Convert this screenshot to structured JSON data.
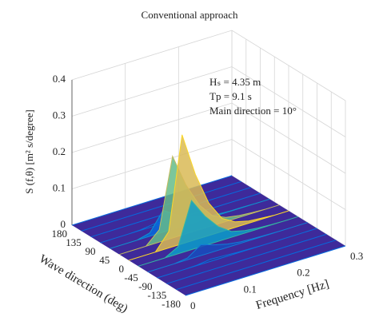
{
  "chart_data": {
    "type": "surface",
    "title": "Conventional approach",
    "xlabel": "Frequency [Hz]",
    "ylabel": "Wave direction (deg)",
    "zlabel": "S (f,θ) [m² s/degree]",
    "annotations": [
      "Hₛ = 4.35 m",
      "Tp = 9.1 s",
      "Main direction = 10°"
    ],
    "x": [
      0,
      0.025,
      0.05,
      0.075,
      0.1,
      0.125,
      0.15,
      0.175,
      0.2,
      0.225,
      0.25,
      0.275,
      0.3
    ],
    "y": [
      -180,
      -150,
      -120,
      -90,
      -60,
      -30,
      0,
      30,
      60,
      90,
      120,
      150,
      180
    ],
    "z": [
      [
        0,
        0,
        0,
        0,
        0,
        0,
        0,
        0,
        0,
        0,
        0,
        0,
        0
      ],
      [
        0,
        0,
        0,
        0,
        0,
        0,
        0,
        0,
        0,
        0,
        0,
        0,
        0
      ],
      [
        0,
        0,
        0,
        0,
        0,
        0,
        0,
        0,
        0,
        0,
        0,
        0,
        0
      ],
      [
        0,
        0,
        0,
        0.001,
        0.006,
        0.004,
        0.002,
        0.001,
        0,
        0,
        0,
        0,
        0
      ],
      [
        0,
        0,
        0,
        0.005,
        0.03,
        0.018,
        0.009,
        0.004,
        0.002,
        0.001,
        0,
        0,
        0
      ],
      [
        0,
        0,
        0,
        0.02,
        0.135,
        0.081,
        0.041,
        0.016,
        0.007,
        0.003,
        0.001,
        0,
        0
      ],
      [
        0,
        0,
        0,
        0.045,
        0.3,
        0.18,
        0.09,
        0.036,
        0.015,
        0.006,
        0.003,
        0,
        0
      ],
      [
        0,
        0,
        0,
        0.034,
        0.225,
        0.135,
        0.068,
        0.027,
        0.011,
        0.005,
        0.002,
        0,
        0
      ],
      [
        0,
        0,
        0,
        0.009,
        0.06,
        0.036,
        0.018,
        0.007,
        0.003,
        0.001,
        0.001,
        0,
        0
      ],
      [
        0,
        0,
        0,
        0.001,
        0.006,
        0.004,
        0.002,
        0.001,
        0,
        0,
        0,
        0,
        0
      ],
      [
        0,
        0,
        0,
        0,
        0,
        0,
        0,
        0,
        0,
        0,
        0,
        0,
        0
      ],
      [
        0,
        0,
        0,
        0,
        0,
        0,
        0,
        0,
        0,
        0,
        0,
        0,
        0
      ],
      [
        0,
        0,
        0,
        0,
        0,
        0,
        0,
        0,
        0,
        0,
        0,
        0,
        0
      ]
    ],
    "xlim": [
      0,
      0.3
    ],
    "ylim": [
      -180,
      180
    ],
    "zlim": [
      0,
      0.4
    ],
    "xticks": [
      0,
      0.1,
      0.2,
      0.3
    ],
    "yticks": [
      -180,
      -135,
      -90,
      -45,
      0,
      45,
      90,
      135,
      180
    ],
    "zticks": [
      0,
      0.1,
      0.2,
      0.3,
      0.4
    ],
    "grid": true,
    "colormap": [
      "#352a87",
      "#0363e1",
      "#1485d4",
      "#06a7c6",
      "#38b99e",
      "#92bf73",
      "#d9ba56",
      "#fcce2e",
      "#f9fb0e"
    ],
    "floor_color": "#3e2a9a"
  }
}
